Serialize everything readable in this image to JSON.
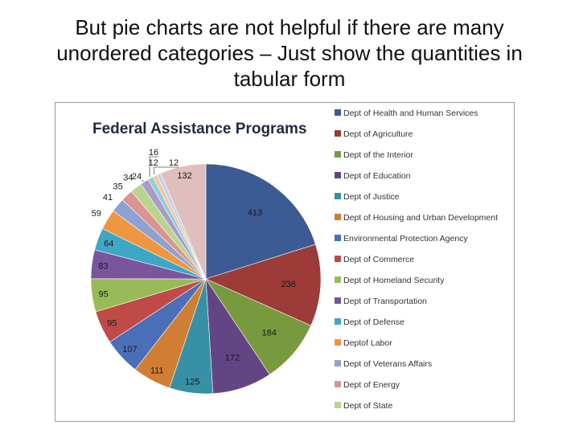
{
  "slide": {
    "title_line1": "But pie charts are not helpful if there are many",
    "title_line2": "unordered categories – Just show the quantities in",
    "title_line3": "tabular form"
  },
  "chart_data": {
    "type": "pie",
    "title": "Federal Assistance Programs",
    "legend_position": "right",
    "slices": [
      {
        "label": "Dept of Health and Human Services",
        "value": 413,
        "color": "#3C5A94"
      },
      {
        "label": "Dept of Agriculture",
        "value": 236,
        "color": "#9C3B37"
      },
      {
        "label": "Dept of the Interior",
        "value": 184,
        "color": "#789A3E"
      },
      {
        "label": "Dept of Education",
        "value": 172,
        "color": "#634585"
      },
      {
        "label": "Dept of Justice",
        "value": 125,
        "color": "#3890A6"
      },
      {
        "label": "Dept of Housing and Urban Development",
        "value": 111,
        "color": "#CF7E34"
      },
      {
        "label": "Environmental Protection Agency",
        "value": 107,
        "color": "#4A6FB8"
      },
      {
        "label": "Dept of Commerce",
        "value": 95,
        "color": "#BF4A47"
      },
      {
        "label": "Dept of Homeland Security",
        "value": 95,
        "color": "#98BB58"
      },
      {
        "label": "Dept of Transportation",
        "value": 83,
        "color": "#7A559E"
      },
      {
        "label": "Dept of Defense",
        "value": 64,
        "color": "#3EA7C4"
      },
      {
        "label": "Deptof Labor",
        "value": 59,
        "color": "#EE9640"
      },
      {
        "label": "Dept of Veterans Affairs",
        "value": 41,
        "color": "#8DA2D3"
      },
      {
        "label": "Dept of Energy",
        "value": 35,
        "color": "#D99593"
      },
      {
        "label": "Dept of State",
        "value": 34,
        "color": "#B9D48F"
      },
      {
        "label": "",
        "value": 24,
        "color": "#A99BC6"
      },
      {
        "label": "",
        "value": 16,
        "color": "#92CDDD"
      },
      {
        "label": "",
        "value": 12,
        "color": "#F9C39A"
      },
      {
        "label": "",
        "value": 12,
        "color": "#C5D0E8"
      },
      {
        "label": "",
        "value": 132,
        "color": "#E0BEBE"
      }
    ]
  }
}
